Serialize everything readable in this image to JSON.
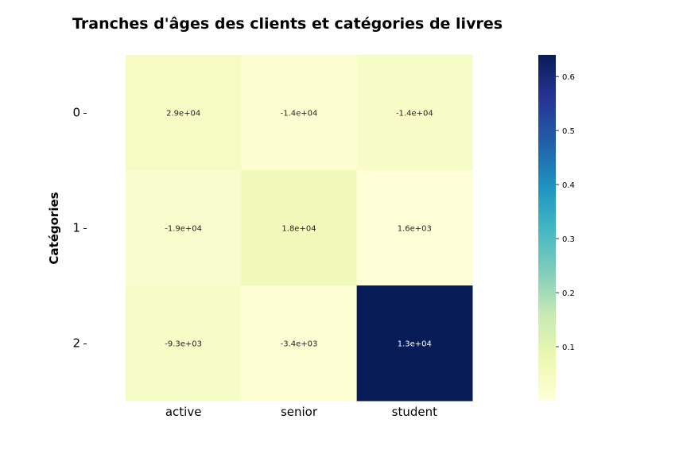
{
  "chart_data": {
    "type": "heatmap",
    "title": "Tranches d'âges des clients et catégories de livres",
    "xlabel": "",
    "ylabel": "Catégories",
    "x_categories": [
      "active",
      "senior",
      "student"
    ],
    "y_categories": [
      "0",
      "1",
      "2"
    ],
    "color_values": [
      [
        0.045,
        0.015,
        0.04
      ],
      [
        0.025,
        0.06,
        0.002
      ],
      [
        0.04,
        0.01,
        0.64
      ]
    ],
    "annotations": [
      [
        "2.9e+04",
        "-1.4e+04",
        "-1.4e+04"
      ],
      [
        "-1.9e+04",
        "1.8e+04",
        "1.6e+03"
      ],
      [
        "-9.3e+03",
        "-3.4e+03",
        "1.3e+04"
      ]
    ],
    "colormap": "YlGnBu",
    "colorbar": {
      "range": [
        0,
        0.64
      ],
      "ticks": [
        0.1,
        0.2,
        0.3,
        0.4,
        0.5,
        0.6
      ],
      "tick_labels": [
        "0.1",
        "0.2",
        "0.3",
        "0.4",
        "0.5",
        "0.6"
      ]
    },
    "grid": false,
    "legend": "colorbar-right"
  }
}
